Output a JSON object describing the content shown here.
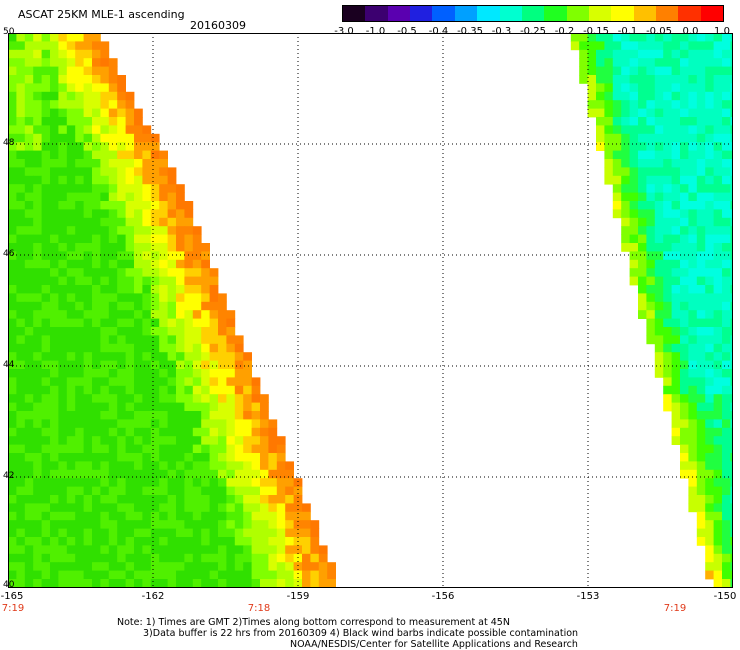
{
  "header": {
    "title": "ASCAT 25KM MLE-1 ascending",
    "date": "20160309"
  },
  "colorbar": {
    "labels": [
      "-3.0",
      "-1.0",
      "-0.5",
      "-0.4",
      "-0.35",
      "-0.3",
      "-0.25",
      "-0.2",
      "-0.15",
      "-0.1",
      "-0.05",
      "0.0",
      "1.0"
    ],
    "colors": [
      "#1a0020",
      "#3c0070",
      "#5a00b0",
      "#2020e0",
      "#0060ff",
      "#00a0ff",
      "#00e8ff",
      "#00ffd0",
      "#00ff80",
      "#20ff20",
      "#80ff00",
      "#d8ff00",
      "#ffff00",
      "#ffc000",
      "#ff8000",
      "#ff3000",
      "#ff0000"
    ]
  },
  "axes": {
    "y_labels": [
      "50",
      "48",
      "46",
      "44",
      "42",
      "40"
    ],
    "x_labels": [
      "-165",
      "-162",
      "-159",
      "-156",
      "-153",
      "-150"
    ],
    "time_labels": [
      "7:19",
      "7:18",
      "7:19"
    ]
  },
  "notes": {
    "line1": "Note: 1) Times are GMT 2)Times along bottom correspond to measurement at 45N",
    "line2": "3)Data buffer is 22 hrs from 20160309 4) Black wind barbs indicate possible contamination",
    "line3": "NOAA/NESDIS/Center for Satellite Applications and Research"
  }
}
